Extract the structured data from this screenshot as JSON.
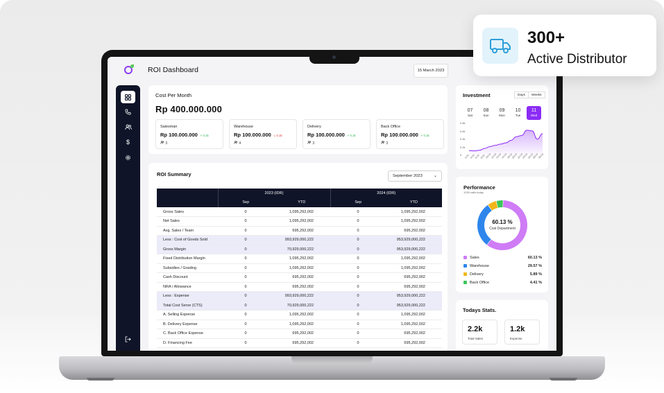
{
  "badge": {
    "count": "300+",
    "caption": "Active Distributor",
    "icon": "delivery-truck-icon"
  },
  "app": {
    "title": "ROI Dashboard",
    "date": "15 March 2023"
  },
  "sidebar": {
    "items": [
      "dashboard-icon",
      "phone-icon",
      "users-icon",
      "dollar-icon",
      "gear-icon"
    ],
    "logout": "logout-icon"
  },
  "cost_per_month": {
    "title": "Cost Per Month",
    "total": "Rp  400.000.000",
    "categories": [
      {
        "name": "Salesman",
        "value": "Rp 100.000.000",
        "change": "↗ 0.15",
        "trend": "up",
        "people": "3"
      },
      {
        "name": "Warehouse",
        "value": "Rp 100.000.000",
        "change": "↘ 0.15",
        "trend": "down",
        "people": "4"
      },
      {
        "name": "Delivery",
        "value": "Rp 100.000.000",
        "change": "↗ 0.15",
        "trend": "up",
        "people": "3"
      },
      {
        "name": "Back Office",
        "value": "Rp 100.000.000",
        "change": "↗ 0.15",
        "trend": "up",
        "people": "3"
      }
    ]
  },
  "roi_summary": {
    "title": "ROI Summary",
    "month": "September 2023",
    "year_headers": [
      "2023 (IDR)",
      "2024 (IDR)"
    ],
    "sub_headers": [
      "Sep",
      "YTD",
      "Sep",
      "YTD"
    ],
    "rows": [
      {
        "label": "Gross Sales",
        "v": [
          "0",
          "1,095,292,002",
          "0",
          "1,095,292,002"
        ],
        "hl": false
      },
      {
        "label": "Net Sales",
        "v": [
          "0",
          "1,095,292,002",
          "0",
          "1,095,292,002"
        ],
        "hl": false
      },
      {
        "label": "Avg. Sales / Team",
        "v": [
          "0",
          "695,292,002",
          "0",
          "695,292,002"
        ],
        "hl": false
      },
      {
        "label": "Less : Cost of Goods Sold",
        "v": [
          "0",
          "993,929,000,222",
          "0",
          "953,929,000,222"
        ],
        "hl": true
      },
      {
        "label": "Gross Margin",
        "v": [
          "0",
          "70,929,000,222",
          "0",
          "953,929,000,222"
        ],
        "hl": true
      },
      {
        "label": "Fixed Distribution Margin",
        "v": [
          "0",
          "1,095,292,002",
          "0",
          "1,095,292,002"
        ],
        "hl": false
      },
      {
        "label": "Subsidies / Grading",
        "v": [
          "0",
          "1,095,292,002",
          "0",
          "1,095,292,002"
        ],
        "hl": false
      },
      {
        "label": "Cash Discount",
        "v": [
          "0",
          "695,292,002",
          "0",
          "695,292,002"
        ],
        "hl": false
      },
      {
        "label": "NRA / Allowance",
        "v": [
          "0",
          "695,292,002",
          "0",
          "695,292,002"
        ],
        "hl": false
      },
      {
        "label": "Less : Expense",
        "v": [
          "0",
          "993,929,000,222",
          "0",
          "953,929,000,222"
        ],
        "hl": true
      },
      {
        "label": "Total Cost Serve (CTS)",
        "v": [
          "0",
          "70,929,000,222",
          "0",
          "953,929,000,222"
        ],
        "hl": true
      },
      {
        "label": "A. Selling Expense",
        "v": [
          "0",
          "1,095,292,002",
          "0",
          "1,095,292,002"
        ],
        "hl": false
      },
      {
        "label": "B. Delivery Expense",
        "v": [
          "0",
          "1,095,292,002",
          "0",
          "1,095,292,002"
        ],
        "hl": false
      },
      {
        "label": "C. Back Office  Expense",
        "v": [
          "0",
          "695,292,002",
          "0",
          "695,292,002"
        ],
        "hl": false
      },
      {
        "label": "D. Financing Fee",
        "v": [
          "0",
          "695,292,002",
          "0",
          "695,292,002"
        ],
        "hl": false
      }
    ]
  },
  "investment": {
    "title": "Investment",
    "toggles": [
      "Days",
      "Weeks"
    ],
    "days": [
      {
        "num": "07",
        "name": "Sat"
      },
      {
        "num": "08",
        "name": "Sun"
      },
      {
        "num": "09",
        "name": "Mon"
      },
      {
        "num": "10",
        "name": "Tue"
      },
      {
        "num": "11",
        "name": "Wed",
        "active": true
      }
    ],
    "chart_data": {
      "type": "area",
      "yticks": [
        "0.8k",
        "0.6k",
        "0.4k",
        "0.2k",
        "0"
      ],
      "ylim": [
        0,
        0.9
      ],
      "x": [
        "2/10",
        "4/10",
        "6/10",
        "8/10",
        "10/10",
        "12/10",
        "14/10",
        "16/10",
        "18/10",
        "20/10",
        "22/10",
        "24/10",
        "26/10",
        "28/10",
        "30/10"
      ],
      "values": [
        0.13,
        0.12,
        0.14,
        0.2,
        0.26,
        0.3,
        0.34,
        0.38,
        0.46,
        0.58,
        0.62,
        0.79,
        0.77,
        0.5,
        0.68
      ],
      "color": "#8b2cf5"
    }
  },
  "performance": {
    "title": "Performance",
    "subtitle": "1239 calls today",
    "center_pct": "60.13 %",
    "center_label": "Cost Department",
    "chart_data": {
      "type": "pie",
      "labels": [
        "Sales",
        "Warehouse",
        "Delivery",
        "Back Office"
      ],
      "values": [
        60.13,
        29.57,
        5.89,
        4.41
      ],
      "colors": [
        "#cf7cf6",
        "#2e86ec",
        "#f2b61a",
        "#3cc55a"
      ]
    },
    "legend_values": [
      "60.13 %",
      "29.57 %",
      "5.89 %",
      "4.41 %"
    ]
  },
  "todays_stats": {
    "title": "Todays Stats.",
    "items": [
      {
        "value": "2.2k",
        "label": "Total Sales"
      },
      {
        "value": "1.2k",
        "label": "Expense"
      }
    ]
  }
}
